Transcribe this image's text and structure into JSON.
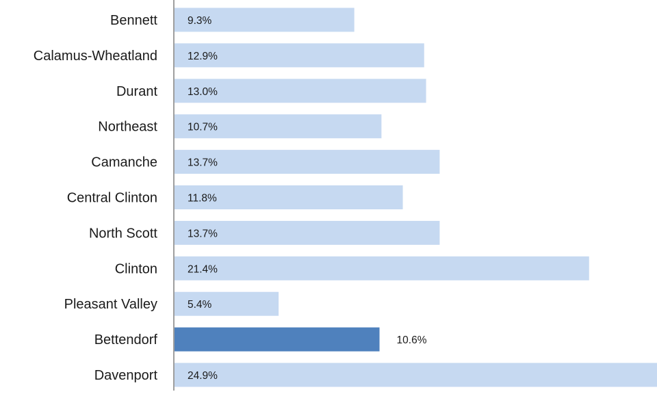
{
  "chart_data": {
    "type": "bar",
    "orientation": "horizontal",
    "categories": [
      "Bennett",
      "Calamus-Wheatland",
      "Durant",
      "Northeast",
      "Camanche",
      "Central Clinton",
      "North Scott",
      "Clinton",
      "Pleasant Valley",
      "Bettendorf",
      "Davenport"
    ],
    "values": [
      9.3,
      12.9,
      13.0,
      10.7,
      13.7,
      11.8,
      13.7,
      21.4,
      5.4,
      10.6,
      24.9
    ],
    "value_labels": [
      "9.3%",
      "12.9%",
      "13.0%",
      "10.7%",
      "13.7%",
      "11.8%",
      "13.7%",
      "21.4%",
      "5.4%",
      "10.6%",
      "24.9%"
    ],
    "highlight_category": "Bettendorf",
    "title": "",
    "xlabel": "",
    "ylabel": "",
    "xlim": [
      0,
      24.9
    ],
    "grid": false,
    "legend": "none",
    "colors": {
      "bar": "#c6d9f1",
      "highlight": "#4f81bd",
      "axis": "#7f7f7f",
      "text": "#1a1a1a"
    }
  }
}
